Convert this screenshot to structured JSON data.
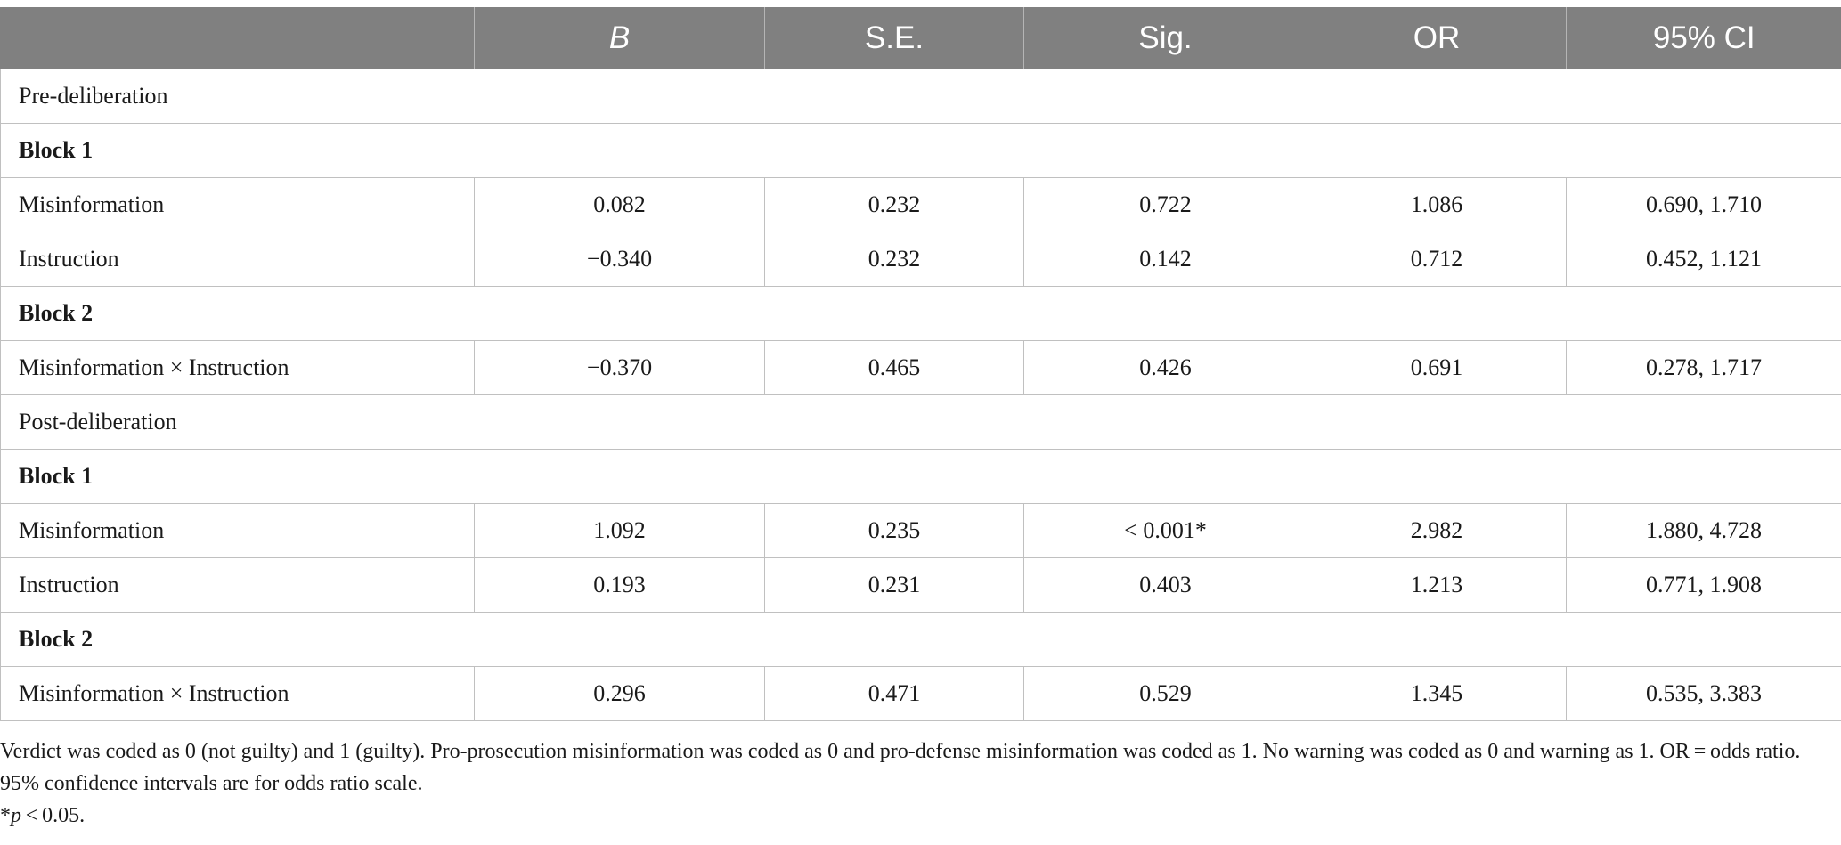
{
  "table": {
    "headers": [
      "",
      "B",
      "S.E.",
      "Sig.",
      "OR",
      "95% CI"
    ],
    "rows": [
      {
        "kind": "section",
        "label": "Pre-deliberation"
      },
      {
        "kind": "block",
        "label": "Block 1"
      },
      {
        "kind": "data",
        "label": "Misinformation",
        "values": [
          "0.082",
          "0.232",
          "0.722",
          "1.086",
          "0.690, 1.710"
        ]
      },
      {
        "kind": "data",
        "label": "Instruction",
        "values": [
          "−0.340",
          "0.232",
          "0.142",
          "0.712",
          "0.452, 1.121"
        ]
      },
      {
        "kind": "block",
        "label": "Block 2"
      },
      {
        "kind": "data",
        "label": "Misinformation × Instruction",
        "values": [
          "−0.370",
          "0.465",
          "0.426",
          "0.691",
          "0.278, 1.717"
        ]
      },
      {
        "kind": "section",
        "label": "Post-deliberation"
      },
      {
        "kind": "block",
        "label": "Block 1"
      },
      {
        "kind": "data",
        "label": "Misinformation",
        "values": [
          "1.092",
          "0.235",
          "< 0.001*",
          "2.982",
          "1.880, 4.728"
        ]
      },
      {
        "kind": "data",
        "label": "Instruction",
        "values": [
          "0.193",
          "0.231",
          "0.403",
          "1.213",
          "0.771, 1.908"
        ]
      },
      {
        "kind": "block",
        "label": "Block 2"
      },
      {
        "kind": "data",
        "label": "Misinformation × Instruction",
        "values": [
          "0.296",
          "0.471",
          "0.529",
          "1.345",
          "0.535, 3.383"
        ]
      }
    ]
  },
  "footnotes": {
    "note": "Verdict was coded as 0 (not guilty) and 1 (guilty). Pro-prosecution misinformation was coded as 0 and pro-defense misinformation was coded as 1. No warning was coded as 0 and warning as 1. OR = odds ratio. 95% confidence intervals are for odds ratio scale.",
    "sig_prefix": "*",
    "sig_p": "p",
    "sig_rest": " < 0.05."
  }
}
